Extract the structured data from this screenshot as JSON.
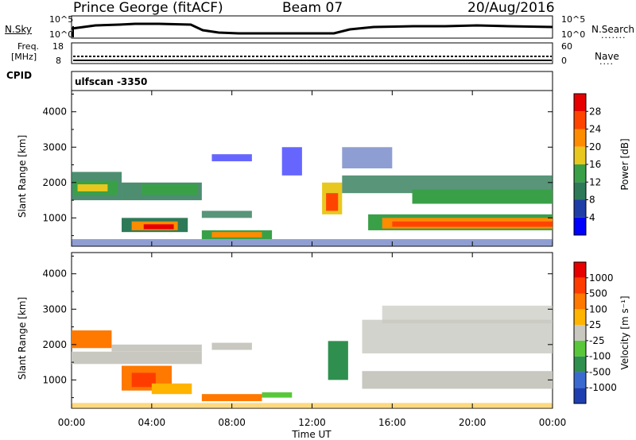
{
  "header": {
    "station": "Prince George (fitACF)",
    "beam": "Beam 07",
    "date": "20/Aug/2016"
  },
  "top_panels": {
    "nsky_label": "N.Sky",
    "nsearch_label": "N.Search",
    "noise_ticks": [
      "10^5",
      "10^0"
    ],
    "noise_right_ticks": [
      "10^5",
      "10^0"
    ],
    "freq_label": "Freq.",
    "freq_unit": "[MHz]",
    "freq_ticks": [
      "18",
      "8"
    ],
    "nave_label": "Nave",
    "nave_ticks": [
      "60",
      "0"
    ],
    "cpid_label": "CPID",
    "cpid_value": "ulfscan  -3350"
  },
  "chart_data": [
    {
      "type": "heatmap",
      "name": "power",
      "ylabel": "Slant Range [km]",
      "yticks": [
        1000,
        2000,
        3000,
        4000
      ],
      "ylim": [
        200,
        4600
      ],
      "xticks": [
        "00:00",
        "04:00",
        "08:00",
        "12:00",
        "16:00",
        "20:00",
        "00:00"
      ],
      "xlim_hours": [
        0,
        24
      ],
      "colorbar": {
        "label": "Power [dB]",
        "ticks": [
          "4",
          "8",
          "12",
          "16",
          "20",
          "24",
          "28"
        ],
        "colors": [
          "#0000ff",
          "#1f3da6",
          "#2e7a58",
          "#3aa048",
          "#e8c81e",
          "#ff8c00",
          "#ff4400",
          "#e60000"
        ]
      }
    },
    {
      "type": "heatmap",
      "name": "velocity",
      "ylabel": "Slant Range [km]",
      "yticks": [
        1000,
        2000,
        3000,
        4000
      ],
      "ylim": [
        200,
        4600
      ],
      "xticks": [
        "00:00",
        "04:00",
        "08:00",
        "12:00",
        "16:00",
        "20:00",
        "00:00"
      ],
      "xlabel": "Time UT",
      "xlim_hours": [
        0,
        24
      ],
      "colorbar": {
        "label": "Velocity [m s⁻¹]",
        "ticks": [
          "1000",
          "500",
          "100",
          "25",
          "-25",
          "-100",
          "-500",
          "-1000"
        ],
        "colors": [
          "#1f3fb0",
          "#3a6ad0",
          "#2f8f4f",
          "#58c83a",
          "#c8c8c0",
          "#ffb400",
          "#ff7800",
          "#ff3c00",
          "#e60000"
        ]
      }
    }
  ],
  "colors": {
    "power_ionospheric": "#3aa048",
    "ground_scatter": "#c8c8c0"
  }
}
